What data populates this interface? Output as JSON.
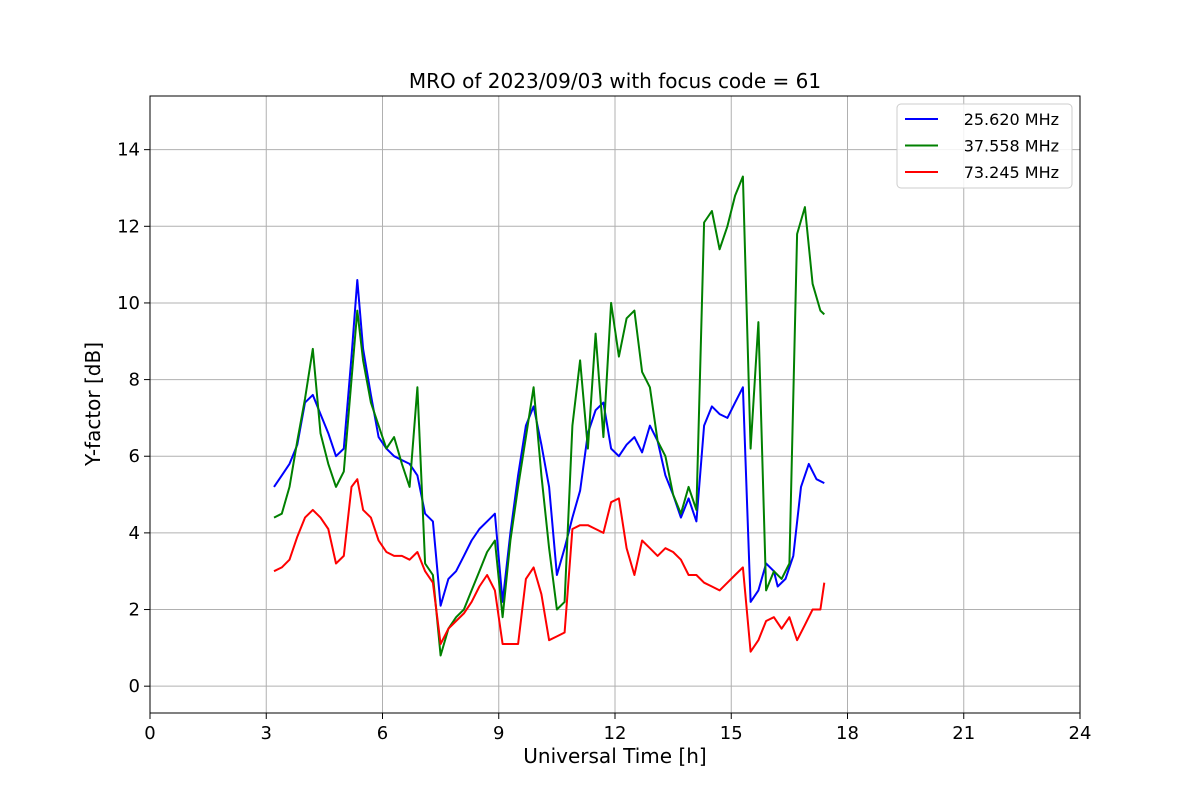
{
  "chart_data": {
    "type": "line",
    "title": "MRO of 2023/09/03 with focus code = 61",
    "xlabel": "Universal Time [h]",
    "ylabel": "Y-factor [dB]",
    "xlim": [
      0,
      24
    ],
    "ylim": [
      -0.7,
      15.4
    ],
    "xticks": [
      0,
      3,
      6,
      9,
      12,
      15,
      18,
      21,
      24
    ],
    "yticks": [
      0,
      2,
      4,
      6,
      8,
      10,
      12,
      14
    ],
    "grid": true,
    "legend_position": "top-right",
    "series": [
      {
        "name": "25.620 MHz",
        "color": "#0000ff",
        "x": [
          3.2,
          3.4,
          3.6,
          3.8,
          4.0,
          4.2,
          4.4,
          4.6,
          4.8,
          5.0,
          5.2,
          5.35,
          5.5,
          5.7,
          5.9,
          6.1,
          6.3,
          6.5,
          6.7,
          6.9,
          7.1,
          7.3,
          7.5,
          7.7,
          7.9,
          8.1,
          8.3,
          8.5,
          8.7,
          8.9,
          9.1,
          9.3,
          9.5,
          9.7,
          9.9,
          10.1,
          10.3,
          10.5,
          10.7,
          10.9,
          11.1,
          11.3,
          11.5,
          11.7,
          11.9,
          12.1,
          12.3,
          12.5,
          12.7,
          12.9,
          13.1,
          13.3,
          13.5,
          13.7,
          13.9,
          14.1,
          14.3,
          14.5,
          14.7,
          14.9,
          15.1,
          15.3,
          15.5,
          15.7,
          15.9,
          16.1,
          16.2,
          16.4,
          16.6,
          16.8,
          17.0,
          17.2,
          17.4
        ],
        "y": [
          5.2,
          5.5,
          5.8,
          6.3,
          7.4,
          7.6,
          7.1,
          6.6,
          6.0,
          6.2,
          8.6,
          10.6,
          8.8,
          7.6,
          6.5,
          6.2,
          6.0,
          5.9,
          5.8,
          5.5,
          4.5,
          4.3,
          2.1,
          2.8,
          3.0,
          3.4,
          3.8,
          4.1,
          4.3,
          4.5,
          2.2,
          4.0,
          5.5,
          6.8,
          7.3,
          6.3,
          5.2,
          2.9,
          3.6,
          4.4,
          5.1,
          6.6,
          7.2,
          7.4,
          6.2,
          6.0,
          6.3,
          6.5,
          6.1,
          6.8,
          6.4,
          5.5,
          5.0,
          4.4,
          4.9,
          4.3,
          6.8,
          7.3,
          7.1,
          7.0,
          7.4,
          7.8,
          2.2,
          2.5,
          3.2,
          3.0,
          2.6,
          2.8,
          3.4,
          5.2,
          5.8,
          5.4,
          5.3
        ]
      },
      {
        "name": "37.558 MHz",
        "color": "#008000",
        "x": [
          3.2,
          3.4,
          3.6,
          3.8,
          4.0,
          4.2,
          4.4,
          4.6,
          4.8,
          5.0,
          5.2,
          5.35,
          5.5,
          5.7,
          5.9,
          6.1,
          6.3,
          6.5,
          6.7,
          6.9,
          7.1,
          7.3,
          7.5,
          7.7,
          7.9,
          8.1,
          8.3,
          8.5,
          8.7,
          8.9,
          9.1,
          9.3,
          9.5,
          9.7,
          9.9,
          10.1,
          10.3,
          10.5,
          10.7,
          10.9,
          11.1,
          11.3,
          11.5,
          11.7,
          11.9,
          12.1,
          12.3,
          12.5,
          12.7,
          12.9,
          13.1,
          13.3,
          13.5,
          13.7,
          13.9,
          14.1,
          14.3,
          14.5,
          14.7,
          14.9,
          15.1,
          15.3,
          15.5,
          15.7,
          15.9,
          16.1,
          16.3,
          16.5,
          16.7,
          16.9,
          17.1,
          17.3,
          17.4
        ],
        "y": [
          4.4,
          4.5,
          5.2,
          6.4,
          7.5,
          8.8,
          6.6,
          5.8,
          5.2,
          5.6,
          8.0,
          9.8,
          8.5,
          7.4,
          6.8,
          6.2,
          6.5,
          5.8,
          5.2,
          7.8,
          3.2,
          2.9,
          0.8,
          1.5,
          1.8,
          2.0,
          2.5,
          3.0,
          3.5,
          3.8,
          1.8,
          3.8,
          5.2,
          6.5,
          7.8,
          5.5,
          3.6,
          2.0,
          2.2,
          6.8,
          8.5,
          6.2,
          9.2,
          6.5,
          10.0,
          8.6,
          9.6,
          9.8,
          8.2,
          7.8,
          6.4,
          6.0,
          5.0,
          4.5,
          5.2,
          4.6,
          12.1,
          12.4,
          11.4,
          12.0,
          12.8,
          13.3,
          6.2,
          9.5,
          2.5,
          3.0,
          2.8,
          3.2,
          11.8,
          12.5,
          10.5,
          9.8,
          9.7
        ]
      },
      {
        "name": "73.245 MHz",
        "color": "#ff0000",
        "x": [
          3.2,
          3.4,
          3.6,
          3.8,
          4.0,
          4.2,
          4.4,
          4.6,
          4.8,
          5.0,
          5.2,
          5.35,
          5.5,
          5.7,
          5.9,
          6.1,
          6.3,
          6.5,
          6.7,
          6.9,
          7.1,
          7.3,
          7.5,
          7.7,
          7.9,
          8.1,
          8.3,
          8.5,
          8.7,
          8.9,
          9.1,
          9.3,
          9.5,
          9.7,
          9.9,
          10.1,
          10.3,
          10.5,
          10.7,
          10.9,
          11.1,
          11.3,
          11.5,
          11.7,
          11.9,
          12.1,
          12.3,
          12.5,
          12.7,
          12.9,
          13.1,
          13.3,
          13.5,
          13.7,
          13.9,
          14.1,
          14.3,
          14.5,
          14.7,
          14.9,
          15.1,
          15.3,
          15.5,
          15.7,
          15.9,
          16.1,
          16.3,
          16.5,
          16.7,
          16.9,
          17.1,
          17.3,
          17.4
        ],
        "y": [
          3.0,
          3.1,
          3.3,
          3.9,
          4.4,
          4.6,
          4.4,
          4.1,
          3.2,
          3.4,
          5.2,
          5.4,
          4.6,
          4.4,
          3.8,
          3.5,
          3.4,
          3.4,
          3.3,
          3.5,
          3.0,
          2.7,
          1.1,
          1.5,
          1.7,
          1.9,
          2.2,
          2.6,
          2.9,
          2.5,
          1.1,
          1.1,
          1.1,
          2.8,
          3.1,
          2.4,
          1.2,
          1.3,
          1.4,
          4.1,
          4.2,
          4.2,
          4.1,
          4.0,
          4.8,
          4.9,
          3.6,
          2.9,
          3.8,
          3.6,
          3.4,
          3.6,
          3.5,
          3.3,
          2.9,
          2.9,
          2.7,
          2.6,
          2.5,
          2.7,
          2.9,
          3.1,
          0.9,
          1.2,
          1.7,
          1.8,
          1.5,
          1.8,
          1.2,
          1.6,
          2.0,
          2.0,
          2.7
        ]
      }
    ]
  }
}
